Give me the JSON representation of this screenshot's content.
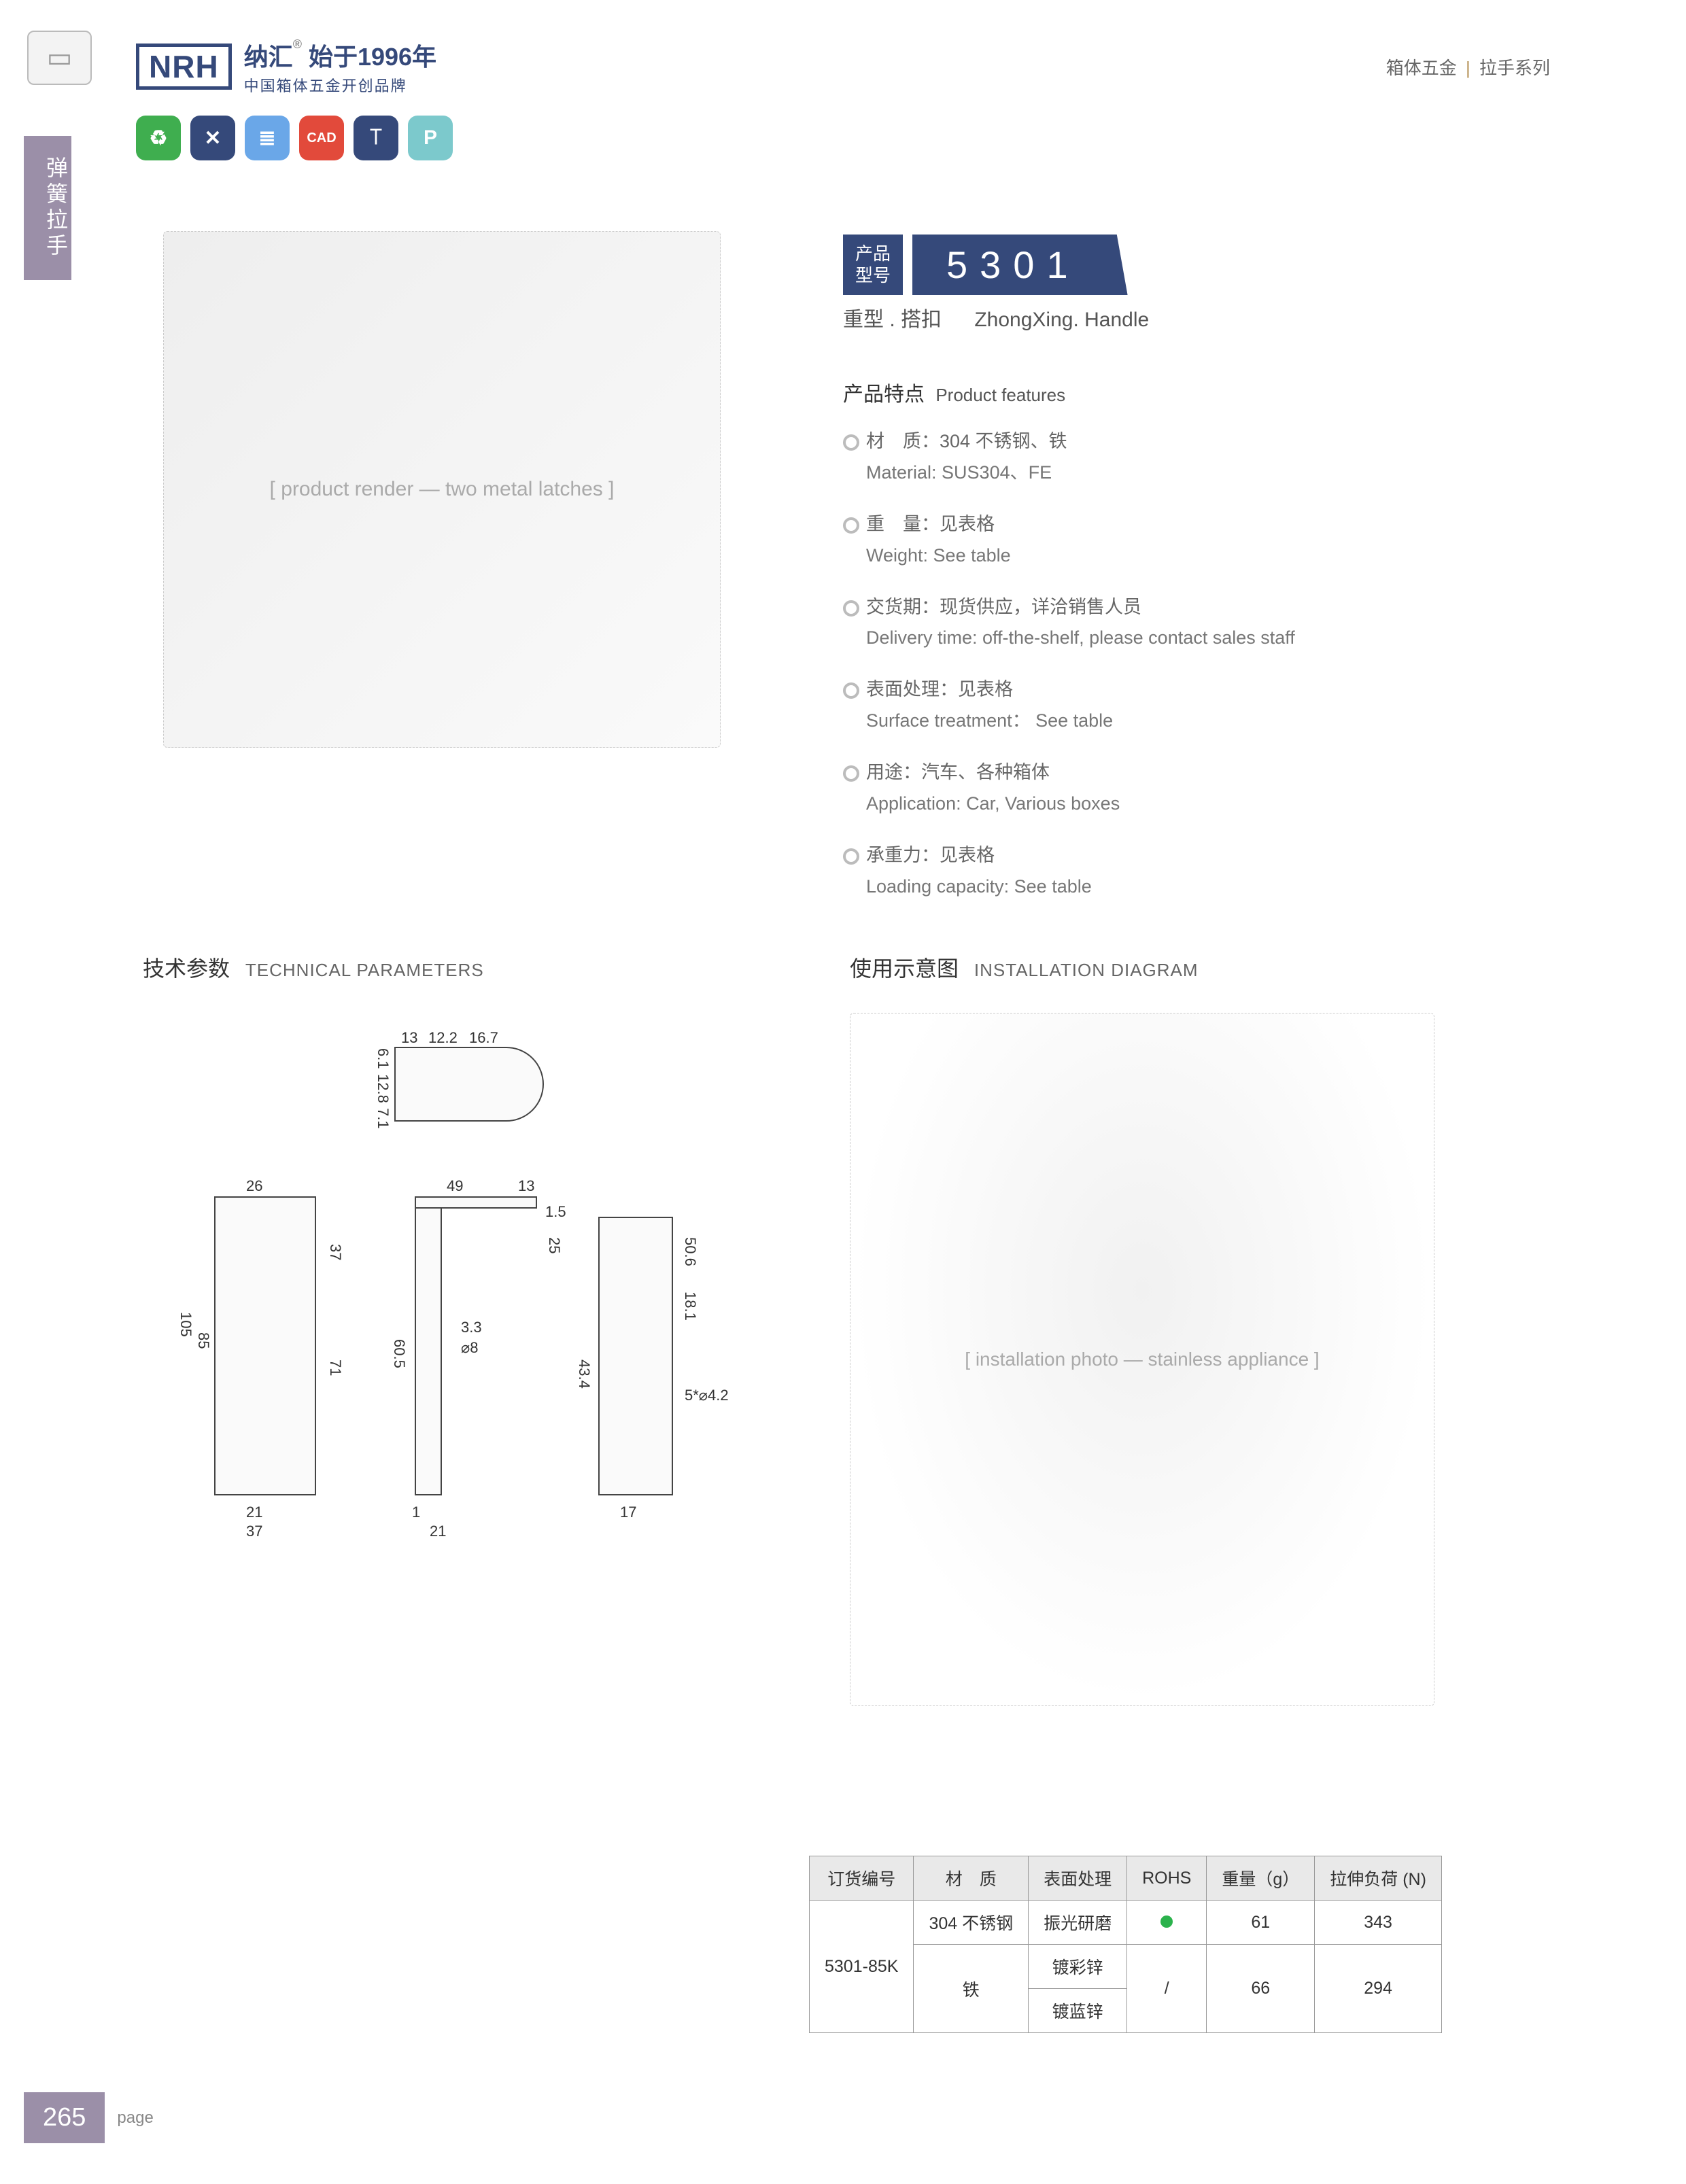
{
  "header": {
    "logo_abbr": "NRH",
    "brand_cn": "纳汇",
    "since": "始于1996年",
    "tagline": "中国箱体五金开创品牌",
    "category_cn": "箱体五金",
    "category_sub": "拉手系列"
  },
  "side_tab": "弹簧拉手",
  "badges": [
    {
      "glyph": "♻",
      "color": "#3fae4f"
    },
    {
      "glyph": "✕",
      "color": "#35497a"
    },
    {
      "glyph": "≣",
      "color": "#6aa7e8"
    },
    {
      "glyph": "CAD",
      "color": "#e24a3b"
    },
    {
      "glyph": "⟙",
      "color": "#35497a"
    },
    {
      "glyph": "P",
      "color": "#7cc9cc"
    }
  ],
  "model": {
    "label_line1": "产品",
    "label_line2": "型号",
    "number": "5301",
    "subtitle_cn": "重型 . 搭扣",
    "subtitle_en": "ZhongXing. Handle"
  },
  "features": {
    "title_cn": "产品特点",
    "title_en": "Product features",
    "items": [
      {
        "cn": "材　质：304 不锈钢、铁",
        "en": "Material: SUS304、FE"
      },
      {
        "cn": "重　量：见表格",
        "en": "Weight: See table"
      },
      {
        "cn": "交货期：现货供应，详洽销售人员",
        "en": "Delivery time: off-the-shelf, please contact sales staff"
      },
      {
        "cn": "表面处理：见表格",
        "en": "Surface treatment： See table"
      },
      {
        "cn": "用途：汽车、各种箱体",
        "en": "Application: Car, Various boxes"
      },
      {
        "cn": "承重力：见表格",
        "en": "Loading capacity: See table"
      }
    ]
  },
  "sections": {
    "tech_cn": "技术参数",
    "tech_en": "TECHNICAL PARAMETERS",
    "install_cn": "使用示意图",
    "install_en": "INSTALLATION DIAGRAM"
  },
  "tech_dims": {
    "top_view": {
      "d1": "13",
      "d2": "12.2",
      "d3": "16.7",
      "h1": "6.1",
      "h2": "12.8",
      "h3": "7.1"
    },
    "front_view": {
      "w_top": "26",
      "h_total": "105",
      "h_inner": "85",
      "h_seg": "37",
      "h_seg2": "71",
      "w_bot1": "21",
      "w_bot2": "37"
    },
    "side_view": {
      "w1": "49",
      "w2": "13",
      "t": "1.5",
      "h1": "25",
      "h2": "60.5",
      "gap": "1",
      "bot": "21",
      "r": "3.3",
      "hole": "⌀8"
    },
    "right_view": {
      "h1": "50.6",
      "h2": "18.1",
      "h3": "43.4",
      "bot": "17",
      "holes": "5*⌀4.2"
    }
  },
  "table": {
    "headers": [
      "订货编号",
      "材　质",
      "表面处理",
      "ROHS",
      "重量（g）",
      "拉伸负荷 (N)"
    ],
    "order_no": "5301-85K",
    "rows": [
      {
        "material": "304 不锈钢",
        "surface": "振光研磨",
        "rohs": "dot",
        "weight": "61",
        "load": "343"
      },
      {
        "material": "铁",
        "surface": "镀彩锌",
        "rohs": "/",
        "weight": "66",
        "load": "294"
      },
      {
        "material": "",
        "surface": "镀蓝锌",
        "rohs": "",
        "weight": "",
        "load": ""
      }
    ]
  },
  "placeholders": {
    "product_photo": "[ product render — two metal latches ]",
    "install_photo": "[ installation photo — stainless appliance ]"
  },
  "footer": {
    "page": "265",
    "label": "page"
  },
  "colors": {
    "brand_navy": "#35497a",
    "side_purple": "#9b8fa8",
    "rohs_green": "#2bb24c"
  }
}
